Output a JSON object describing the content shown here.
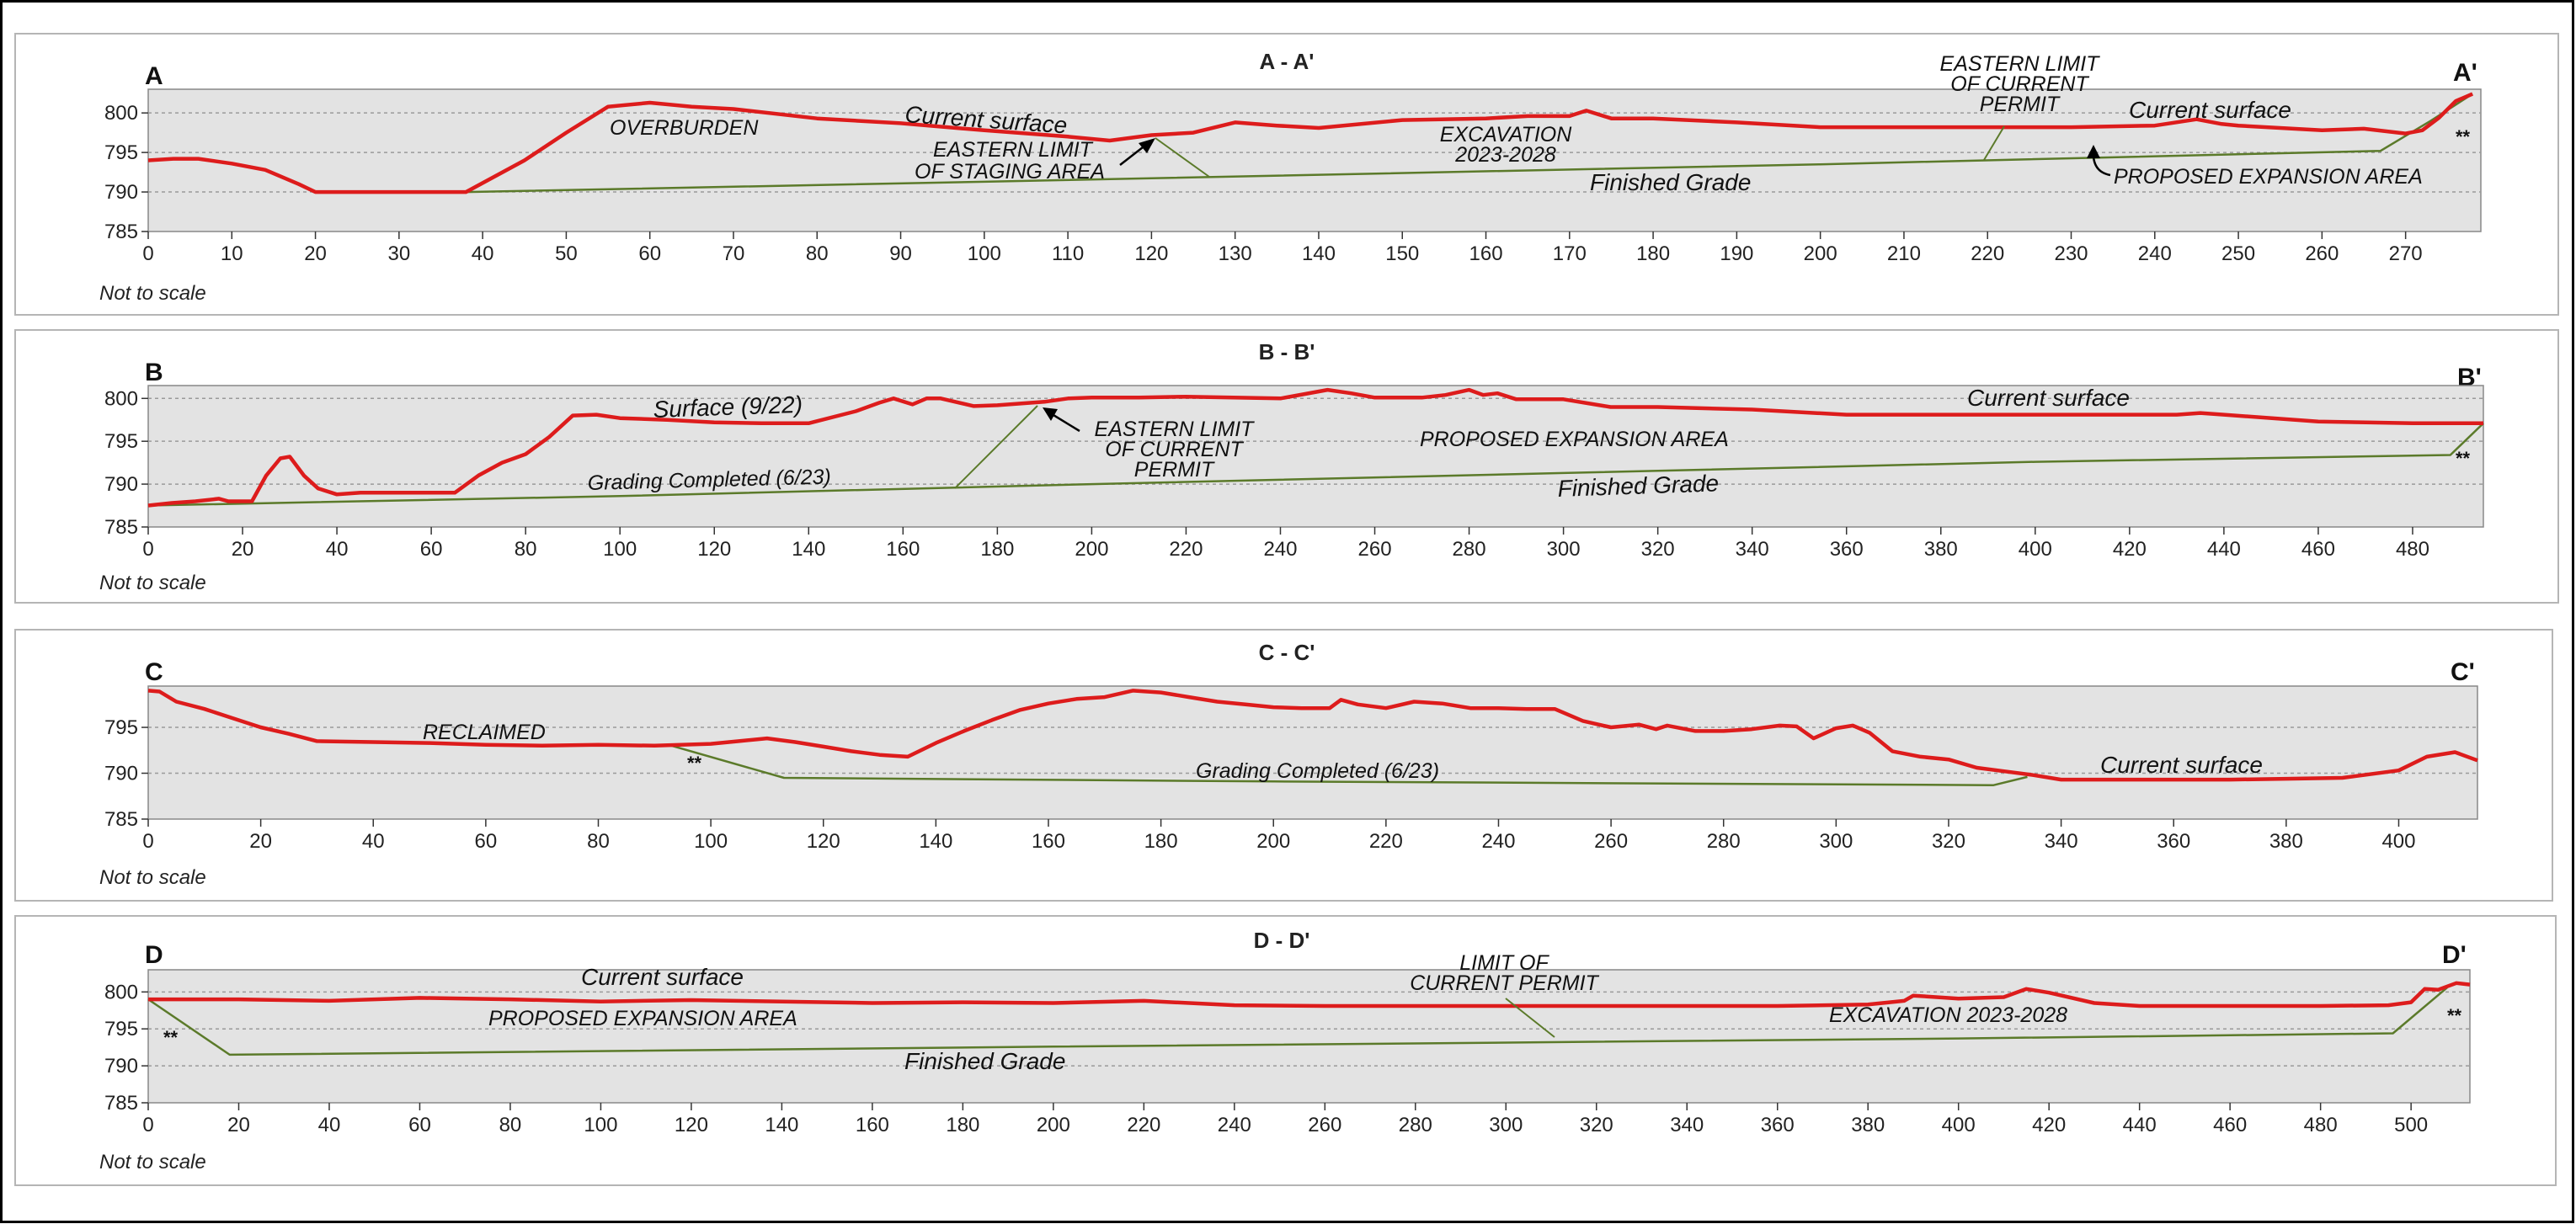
{
  "colors": {
    "surface": "#dd1c1c",
    "grade": "#5b7a2a",
    "plot_bg": "#e3e3e3",
    "panel_border": "#b5b5b5"
  },
  "chart_data": [
    {
      "type": "line",
      "title": "A - A'",
      "left_label": "A",
      "right_label": "A'",
      "note": "Not to scale",
      "xlim": [
        0,
        279
      ],
      "ylim": [
        785,
        803
      ],
      "xticks": [
        0,
        10,
        20,
        30,
        40,
        50,
        60,
        70,
        80,
        90,
        100,
        110,
        120,
        130,
        140,
        150,
        160,
        170,
        180,
        190,
        200,
        210,
        220,
        230,
        240,
        250,
        260,
        270
      ],
      "yticks": [
        785,
        790,
        795,
        800
      ],
      "series": [
        {
          "role": "surface",
          "x": [
            0,
            3,
            6,
            10,
            14,
            18,
            20,
            25,
            30,
            35,
            38,
            45,
            50,
            55,
            60,
            65,
            70,
            80,
            90,
            100,
            110,
            115,
            120,
            125,
            130,
            135,
            140,
            150,
            160,
            165,
            170,
            172,
            175,
            180,
            190,
            200,
            210,
            220,
            230,
            240,
            245,
            248,
            250,
            260,
            265,
            270,
            272,
            274,
            276,
            278
          ],
          "y": [
            794,
            794.2,
            794.2,
            793.6,
            792.8,
            791,
            790,
            790,
            790,
            790,
            790,
            794,
            797.5,
            800.8,
            801.3,
            800.8,
            800.5,
            799.3,
            798.7,
            797.8,
            797,
            796.5,
            797.2,
            797.5,
            798.8,
            798.4,
            798.1,
            799.1,
            799.3,
            799.6,
            799.6,
            800.3,
            799.3,
            799.3,
            798.8,
            798.2,
            798.2,
            798.2,
            798.2,
            798.4,
            799.2,
            798.6,
            798.4,
            797.8,
            798,
            797.4,
            797.8,
            799.4,
            801.5,
            802.4
          ]
        },
        {
          "role": "grade",
          "x": [
            38,
            100,
            200,
            267,
            273,
            278
          ],
          "y": [
            790,
            791.3,
            793.5,
            795.2,
            799,
            802.4
          ]
        }
      ],
      "annotations": [
        {
          "text": "OVERBURDEN"
        },
        {
          "text": "Current surface"
        },
        {
          "text": "EASTERN LIMIT"
        },
        {
          "text": "OF STAGING AREA"
        },
        {
          "text": "EXCAVATION"
        },
        {
          "text": "2023-2028"
        },
        {
          "text": "Finished Grade"
        },
        {
          "text": "EASTERN LIMIT"
        },
        {
          "text": "OF CURRENT"
        },
        {
          "text": "PERMIT"
        },
        {
          "text": "Current surface"
        },
        {
          "text": "PROPOSED EXPANSION AREA"
        },
        {
          "text": "**"
        }
      ]
    },
    {
      "type": "line",
      "title": "B - B'",
      "left_label": "B",
      "right_label": "B'",
      "note": "Not to scale",
      "xlim": [
        0,
        495
      ],
      "ylim": [
        785,
        801.5
      ],
      "xticks": [
        0,
        20,
        40,
        60,
        80,
        100,
        120,
        140,
        160,
        180,
        200,
        220,
        240,
        260,
        280,
        300,
        320,
        340,
        360,
        380,
        400,
        420,
        440,
        460,
        480
      ],
      "yticks": [
        785,
        790,
        795,
        800
      ],
      "series": [
        {
          "role": "surface",
          "x": [
            0,
            5,
            10,
            15,
            17,
            22,
            25,
            28,
            30,
            33,
            36,
            40,
            45,
            50,
            55,
            60,
            65,
            70,
            75,
            80,
            85,
            90,
            95,
            100,
            110,
            120,
            130,
            140,
            150,
            155,
            158,
            162,
            165,
            168,
            175,
            180,
            190,
            195,
            200,
            210,
            220,
            230,
            240,
            250,
            255,
            260,
            270,
            275,
            280,
            283,
            286,
            290,
            300,
            310,
            320,
            340,
            360,
            380,
            400,
            420,
            430,
            435,
            440,
            460,
            470,
            480,
            495
          ],
          "y": [
            787.5,
            787.8,
            788,
            788.3,
            788,
            788,
            791,
            793,
            793.2,
            791,
            789.5,
            788.8,
            789,
            789,
            789,
            789,
            789,
            791,
            792.5,
            793.5,
            795.5,
            798,
            798.1,
            797.7,
            797.5,
            797.2,
            797.1,
            797.1,
            798.5,
            799.5,
            800,
            799.3,
            800,
            800,
            799.1,
            799.2,
            799.6,
            800,
            800.1,
            800.1,
            800.2,
            800.1,
            800,
            801,
            800.6,
            800.1,
            800.1,
            800.4,
            801,
            800.4,
            800.6,
            799.9,
            799.9,
            799,
            799,
            798.7,
            798.1,
            798.1,
            798.1,
            798.1,
            798.1,
            798.3,
            798.1,
            797.3,
            797.2,
            797.1,
            797.1
          ]
        },
        {
          "role": "grade",
          "x": [
            0,
            100,
            200,
            300,
            400,
            488,
            495
          ],
          "y": [
            787.5,
            788.6,
            790,
            791.3,
            792.6,
            793.4,
            797.1
          ]
        }
      ],
      "annotations": [
        {
          "text": "Surface (9/22)"
        },
        {
          "text": "EASTERN LIMIT"
        },
        {
          "text": "OF CURRENT"
        },
        {
          "text": "PERMIT"
        },
        {
          "text": "PROPOSED EXPANSION AREA"
        },
        {
          "text": "Current surface"
        },
        {
          "text": "Grading Completed (6/23)"
        },
        {
          "text": "Finished Grade"
        },
        {
          "text": "**"
        }
      ]
    },
    {
      "type": "line",
      "title": "C - C'",
      "left_label": "C",
      "right_label": "C'",
      "note": "Not to scale",
      "xlim": [
        0,
        414
      ],
      "ylim": [
        785,
        799.5
      ],
      "xticks": [
        0,
        20,
        40,
        60,
        80,
        100,
        120,
        140,
        160,
        180,
        200,
        220,
        240,
        260,
        280,
        300,
        320,
        340,
        360,
        380,
        400
      ],
      "yticks": [
        785,
        790,
        795
      ],
      "series": [
        {
          "role": "surface",
          "x": [
            0,
            2,
            5,
            10,
            15,
            20,
            25,
            30,
            40,
            50,
            60,
            70,
            80,
            90,
            100,
            105,
            110,
            115,
            120,
            125,
            130,
            135,
            140,
            145,
            150,
            155,
            160,
            165,
            170,
            175,
            180,
            185,
            190,
            195,
            200,
            205,
            210,
            212,
            215,
            220,
            225,
            230,
            235,
            240,
            245,
            250,
            255,
            260,
            265,
            268,
            270,
            275,
            280,
            285,
            290,
            293,
            296,
            300,
            303,
            306,
            310,
            315,
            320,
            325,
            330,
            335,
            340,
            350,
            360,
            370,
            380,
            390,
            400,
            405,
            410,
            414
          ],
          "y": [
            799,
            798.9,
            797.8,
            797,
            796,
            795,
            794.3,
            793.5,
            793.4,
            793.3,
            793.1,
            793,
            793.1,
            793,
            793.2,
            793.5,
            793.8,
            793.4,
            792.9,
            792.4,
            792,
            791.8,
            793.3,
            794.6,
            795.8,
            796.9,
            797.6,
            798.1,
            798.3,
            799,
            798.8,
            798.3,
            797.8,
            797.5,
            797.2,
            797.1,
            797.1,
            798,
            797.5,
            797.1,
            797.8,
            797.6,
            797.1,
            797.1,
            797,
            797,
            795.7,
            795,
            795.3,
            794.8,
            795.2,
            794.6,
            794.6,
            794.8,
            795.2,
            795.1,
            793.8,
            794.9,
            795.2,
            794.4,
            792.4,
            791.8,
            791.5,
            790.6,
            790.2,
            789.8,
            789.3,
            789.3,
            789.3,
            789.3,
            789.4,
            789.5,
            790.3,
            791.8,
            792.3,
            791.4
          ]
        },
        {
          "role": "grade",
          "x": [
            93,
            113,
            200,
            328,
            334
          ],
          "y": [
            793,
            789.5,
            789.1,
            788.7,
            789.6
          ]
        }
      ],
      "annotations": [
        {
          "text": "RECLAIMED"
        },
        {
          "text": "**"
        },
        {
          "text": "Grading Completed (6/23)"
        },
        {
          "text": "Current surface"
        }
      ]
    },
    {
      "type": "line",
      "title": "D - D'",
      "left_label": "D",
      "right_label": "D'",
      "note": "Not to scale",
      "xlim": [
        0,
        513
      ],
      "ylim": [
        785,
        803
      ],
      "xticks": [
        0,
        20,
        40,
        60,
        80,
        100,
        120,
        140,
        160,
        180,
        200,
        220,
        240,
        260,
        280,
        300,
        320,
        340,
        360,
        380,
        400,
        420,
        440,
        460,
        480,
        500
      ],
      "yticks": [
        785,
        790,
        795,
        800
      ],
      "series": [
        {
          "role": "surface",
          "x": [
            0,
            20,
            40,
            60,
            80,
            100,
            120,
            140,
            160,
            180,
            200,
            220,
            240,
            260,
            280,
            300,
            320,
            340,
            360,
            380,
            388,
            390,
            400,
            410,
            415,
            420,
            430,
            440,
            460,
            480,
            495,
            500,
            503,
            506,
            510,
            513
          ],
          "y": [
            799,
            799,
            798.8,
            799.2,
            799,
            798.7,
            798.9,
            798.7,
            798.5,
            798.6,
            798.5,
            798.8,
            798.2,
            798.1,
            798.1,
            798.1,
            798.1,
            798.1,
            798.1,
            798.3,
            798.8,
            799.5,
            799.1,
            799.3,
            800.4,
            799.9,
            798.5,
            798.1,
            798.1,
            798.1,
            798.2,
            798.6,
            800.4,
            800.3,
            801.2,
            801
          ]
        },
        {
          "role": "grade",
          "x": [
            0,
            18,
            200,
            310,
            400,
            496,
            508
          ],
          "y": [
            799,
            791.5,
            792.6,
            793.2,
            793.7,
            794.4,
            800.6
          ]
        }
      ],
      "annotations": [
        {
          "text": "Current surface"
        },
        {
          "text": "PROPOSED EXPANSION AREA"
        },
        {
          "text": "Finished Grade"
        },
        {
          "text": "LIMIT OF"
        },
        {
          "text": "CURRENT PERMIT"
        },
        {
          "text": "EXCAVATION 2023-2028"
        },
        {
          "text": "**"
        },
        {
          "text": "**"
        }
      ]
    }
  ]
}
